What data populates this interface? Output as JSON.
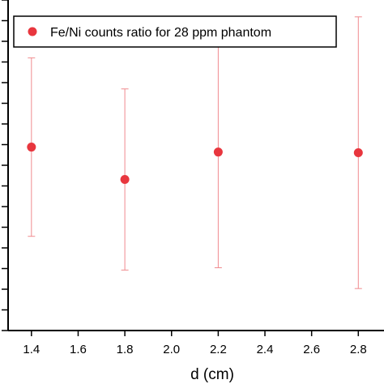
{
  "chart_data": {
    "type": "scatter",
    "xlabel": "d (cm)",
    "x_ticks": [
      "1.4",
      "1.6",
      "1.8",
      "2.0",
      "2.2",
      "2.4",
      "2.6",
      "2.8"
    ],
    "xlim": [
      1.3,
      2.91
    ],
    "ylim": [
      0,
      1
    ],
    "y_tick_count": 17,
    "grid": false,
    "legend_position": "top-right",
    "series": [
      {
        "name": "Fe/Ni counts ratio for 28 ppm phantom",
        "color": "#e8363e",
        "error_color": "#f08a8e",
        "x": [
          1.4,
          1.8,
          2.2,
          2.8
        ],
        "y": [
          0.555,
          0.457,
          0.54,
          0.538
        ],
        "y_err_low": [
          0.27,
          0.274,
          0.35,
          0.411
        ],
        "y_err_high": [
          0.27,
          0.274,
          0.35,
          0.411
        ]
      }
    ]
  }
}
